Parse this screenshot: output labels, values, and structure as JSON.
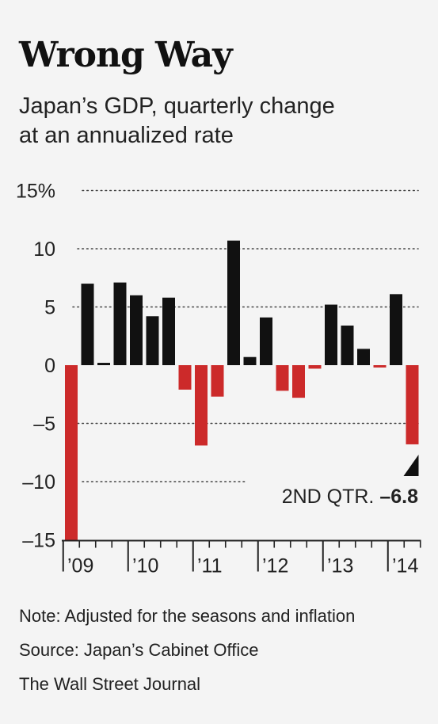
{
  "title": "Wrong Way",
  "subtitle_lines": [
    "Japan’s GDP, quarterly change",
    "at an annualized rate"
  ],
  "chart_data": {
    "type": "bar",
    "title": "Wrong Way",
    "subtitle": "Japan’s GDP, quarterly change at an annualized rate",
    "xlabel": "",
    "ylabel": "",
    "ylim": [
      -15,
      15
    ],
    "y_ticks": [
      {
        "value": 15,
        "label": "15%"
      },
      {
        "value": 10,
        "label": "10"
      },
      {
        "value": 5,
        "label": "5"
      },
      {
        "value": 0,
        "label": "0"
      },
      {
        "value": -5,
        "label": "–5"
      },
      {
        "value": -10,
        "label": "–10"
      },
      {
        "value": -15,
        "label": "–15"
      }
    ],
    "grid": true,
    "categories": [
      "1Q09",
      "2Q09",
      "3Q09",
      "4Q09",
      "1Q10",
      "2Q10",
      "3Q10",
      "4Q10",
      "1Q11",
      "2Q11",
      "3Q11",
      "4Q11",
      "1Q12",
      "2Q12",
      "3Q12",
      "4Q12",
      "1Q13",
      "2Q13",
      "3Q13",
      "4Q13",
      "1Q14",
      "2Q14"
    ],
    "values": [
      -15.0,
      7.0,
      0.2,
      7.1,
      6.0,
      4.2,
      5.8,
      -2.1,
      -6.9,
      -2.7,
      10.7,
      0.7,
      4.1,
      -2.2,
      -2.8,
      -0.3,
      5.2,
      3.4,
      1.4,
      -0.2,
      6.1,
      -6.8
    ],
    "year_labels": [
      "’09",
      "’10",
      "’11",
      "’12",
      "’13",
      "’14"
    ],
    "annotation": {
      "text": "2ND QTR.",
      "value_label": "–6.8"
    },
    "colors": {
      "positive": "#111111",
      "negative": "#cc2a2a",
      "grid": "#444444"
    }
  },
  "notes": [
    "Note: Adjusted for the seasons and inflation",
    "Source: Japan’s Cabinet Office",
    "The Wall Street Journal"
  ]
}
